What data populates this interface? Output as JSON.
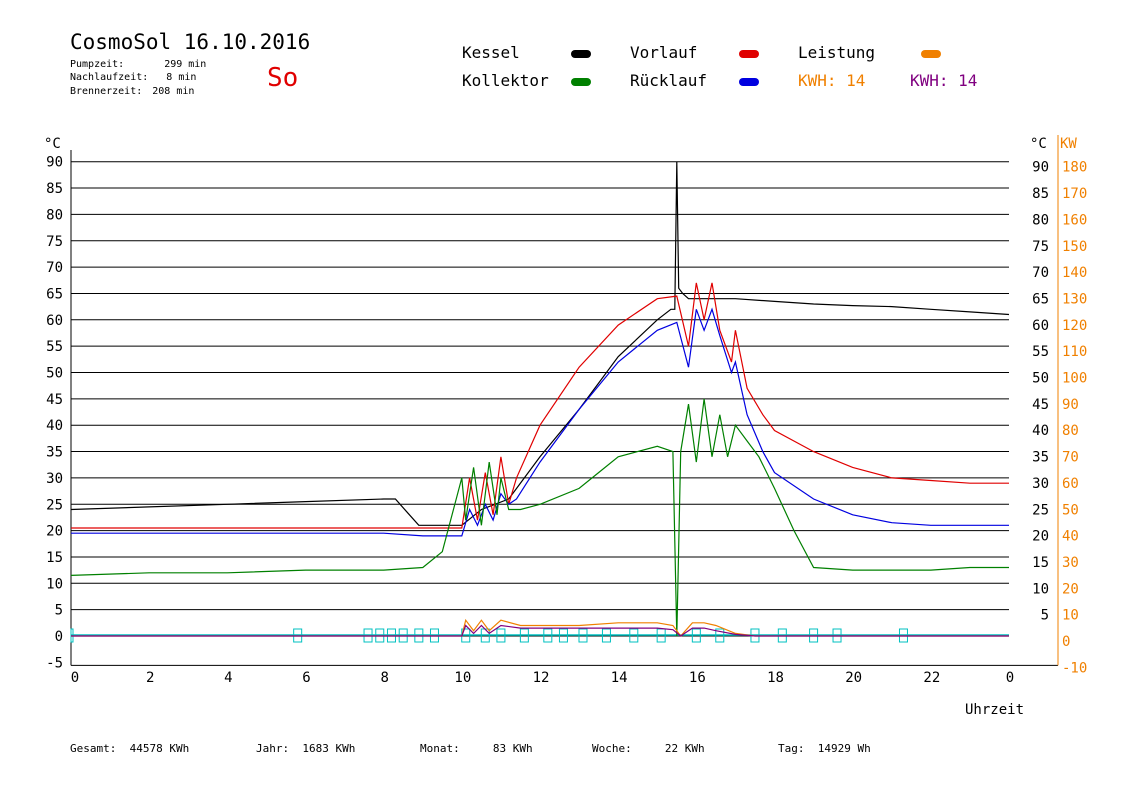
{
  "header": {
    "title": "CosmoSol 16.10.2016",
    "day": "So",
    "info": [
      {
        "label": "Pumpzeit:",
        "value": "299 min"
      },
      {
        "label": "Nachlaufzeit:",
        "value": "8 min"
      },
      {
        "label": "Brennerzeit:",
        "value": "208 min"
      }
    ]
  },
  "legend": [
    {
      "label": "Kessel",
      "color": "#000000"
    },
    {
      "label": "Vorlauf",
      "color": "#e00000"
    },
    {
      "label": "Leistung",
      "color": "#f08000"
    },
    {
      "label": "Kollektor",
      "color": "#008000"
    },
    {
      "label": "Rücklauf",
      "color": "#0000e0"
    },
    {
      "label": "KWH: 14",
      "color": "#f08000"
    },
    {
      "label": "KWH: 14",
      "color": "#800080"
    }
  ],
  "footer": {
    "stats": [
      {
        "label": "Gesamt:",
        "value": "44578 KWh"
      },
      {
        "label": "Jahr:",
        "value": "1683 KWh"
      },
      {
        "label": "Monat:",
        "value": "83 KWh"
      },
      {
        "label": "Woche:",
        "value": "22 KWh"
      },
      {
        "label": "Tag:",
        "value": "14929 Wh"
      }
    ]
  },
  "chart_data": {
    "type": "line",
    "xlabel": "Uhrzeit",
    "ylabel_left": "°C",
    "ylabel_right_temp": "°C",
    "ylabel_right_power": "KW",
    "xlim": [
      0,
      24
    ],
    "ylim": [
      -5,
      92
    ],
    "x_ticks": [
      "0",
      "2",
      "4",
      "6",
      "8",
      "10",
      "12",
      "14",
      "16",
      "18",
      "20",
      "22",
      "0"
    ],
    "y_ticks_left": [
      "90",
      "85",
      "80",
      "75",
      "70",
      "65",
      "60",
      "55",
      "50",
      "45",
      "40",
      "35",
      "30",
      "25",
      "20",
      "15",
      "10",
      "5",
      "0",
      "-5"
    ],
    "y_ticks_right_temp": [
      "90",
      "85",
      "80",
      "75",
      "70",
      "65",
      "60",
      "55",
      "50",
      "45",
      "40",
      "35",
      "30",
      "25",
      "20",
      "15",
      "10",
      "5"
    ],
    "y_ticks_right_power": [
      "180",
      "170",
      "160",
      "150",
      "140",
      "130",
      "120",
      "110",
      "100",
      "90",
      "80",
      "70",
      "60",
      "50",
      "40",
      "30",
      "20",
      "10",
      "0",
      "-10"
    ],
    "grid": true,
    "series": [
      {
        "name": "Kessel",
        "color": "#000000",
        "x": [
          0,
          2,
          4,
          6,
          8,
          8.3,
          8.6,
          8.9,
          9.5,
          10,
          10.5,
          11.2,
          12,
          13,
          14,
          15,
          15.35,
          15.45,
          15.5,
          15.55,
          15.65,
          15.8,
          16,
          16.3,
          16.5,
          17,
          18,
          19,
          20,
          21,
          22,
          23,
          24
        ],
        "values": [
          24,
          24.5,
          25,
          25.5,
          26,
          26,
          23.5,
          21,
          21,
          21,
          24,
          26,
          34,
          43,
          53,
          60,
          62,
          62,
          90,
          66,
          65,
          64,
          64,
          64,
          64,
          64,
          63.5,
          63,
          62.7,
          62.5,
          62,
          61.5,
          61
        ]
      },
      {
        "name": "Vorlauf",
        "color": "#e00000",
        "x": [
          0,
          4,
          8,
          9,
          10,
          10.2,
          10.4,
          10.6,
          10.8,
          11,
          11.2,
          11.4,
          12,
          13,
          14,
          15,
          15.5,
          15.8,
          16,
          16.2,
          16.4,
          16.6,
          16.9,
          17,
          17.3,
          17.7,
          18,
          19,
          20,
          21,
          22,
          23,
          24
        ],
        "values": [
          20.5,
          20.5,
          20.5,
          20.5,
          20.5,
          30,
          22,
          31,
          23,
          34,
          25,
          30,
          40,
          51,
          59,
          64,
          64.5,
          55,
          67,
          60,
          67,
          58,
          52,
          58,
          47,
          42,
          39,
          35,
          32,
          30,
          29.5,
          29,
          29
        ]
      },
      {
        "name": "Rücklauf",
        "color": "#0000e0",
        "x": [
          0,
          4,
          8,
          9,
          10,
          10.2,
          10.4,
          10.6,
          10.8,
          11,
          11.2,
          11.4,
          12,
          13,
          14,
          15,
          15.5,
          15.8,
          16,
          16.2,
          16.4,
          16.6,
          16.9,
          17,
          17.3,
          17.7,
          18,
          19,
          20,
          21,
          22,
          23,
          24
        ],
        "values": [
          19.5,
          19.5,
          19.5,
          19,
          19,
          24,
          21,
          25,
          22,
          27,
          25,
          26,
          33,
          43,
          52,
          58,
          59.5,
          51,
          62,
          58,
          62,
          57,
          50,
          52,
          42,
          35,
          31,
          26,
          23,
          21.5,
          21,
          21,
          21
        ]
      },
      {
        "name": "Kollektor",
        "color": "#008000",
        "x": [
          0,
          2,
          4,
          6,
          8,
          9,
          9.5,
          10,
          10.1,
          10.3,
          10.5,
          10.7,
          10.9,
          11,
          11.2,
          11.5,
          12,
          13,
          13.5,
          14,
          15,
          15.4,
          15.5,
          15.6,
          15.8,
          16,
          16.2,
          16.4,
          16.6,
          16.8,
          17,
          17.3,
          17.6,
          18,
          18.5,
          19,
          20,
          21,
          22,
          23,
          24
        ],
        "values": [
          11.5,
          12,
          12,
          12.5,
          12.5,
          13,
          16,
          30,
          22,
          32,
          21,
          33,
          23,
          30,
          24,
          24,
          25,
          28,
          31,
          34,
          36,
          35,
          0,
          35,
          44,
          33,
          45,
          34,
          42,
          34,
          40,
          37,
          34,
          28,
          20,
          13,
          12.5,
          12.5,
          12.5,
          13,
          13
        ]
      },
      {
        "name": "Leistung",
        "color": "#f08000",
        "x": [
          0,
          10,
          10.1,
          10.3,
          10.5,
          10.7,
          11,
          11.5,
          12,
          13,
          14,
          15,
          15.4,
          15.6,
          15.9,
          16.2,
          16.5,
          17,
          17.5,
          24
        ],
        "values": [
          0,
          0,
          3,
          1,
          3,
          1,
          3,
          2,
          2,
          2,
          2.5,
          2.5,
          2,
          0,
          2.5,
          2.5,
          2,
          0.5,
          0,
          0
        ]
      },
      {
        "name": "KWH",
        "color": "#800080",
        "x": [
          0,
          10,
          10.1,
          10.3,
          10.5,
          10.7,
          11,
          11.5,
          12,
          13,
          14,
          15,
          15.4,
          15.6,
          15.9,
          16.2,
          16.5,
          17,
          17.5,
          24
        ],
        "values": [
          0,
          0,
          2,
          0.5,
          2,
          0.5,
          2,
          1.5,
          1.5,
          1.5,
          1.5,
          1.5,
          1.2,
          0,
          1.5,
          1.5,
          1,
          0.3,
          0,
          0
        ]
      }
    ],
    "pump_markers_x": [
      0,
      5.8,
      7.6,
      7.9,
      8.2,
      8.5,
      8.9,
      9.3,
      10.1,
      10.6,
      11,
      11.6,
      12.2,
      12.6,
      13.1,
      13.7,
      14.4,
      15.1,
      16,
      16.6,
      17.5,
      18.2,
      19.0,
      19.6,
      21.3
    ],
    "pump_marker_color": "#00c0c0"
  }
}
